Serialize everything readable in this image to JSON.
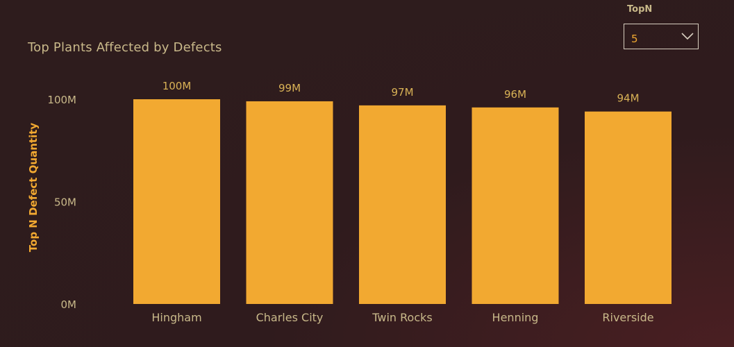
{
  "slicer": {
    "label": "TopN",
    "value": "5"
  },
  "chart_data": {
    "type": "bar",
    "title": "Top Plants Affected by Defects",
    "xlabel": "",
    "ylabel": "Top N Defect Quantity",
    "categories": [
      "Hingham",
      "Charles City",
      "Twin Rocks",
      "Henning",
      "Riverside"
    ],
    "values": [
      100,
      99,
      97,
      96,
      94
    ],
    "data_labels": [
      "100M",
      "99M",
      "97M",
      "96M",
      "94M"
    ],
    "unit": "M",
    "ylim": [
      0,
      100
    ],
    "yticks": [
      0,
      50,
      100
    ],
    "ytick_labels": [
      "0M",
      "50M",
      "100M"
    ],
    "grid": false,
    "legend": "none",
    "colors": {
      "bar": "#f2a931",
      "title": "#c9b98a",
      "ylabel": "#f2a931",
      "data_label": "#d9b256",
      "tick_label": "#c9b98a"
    }
  }
}
